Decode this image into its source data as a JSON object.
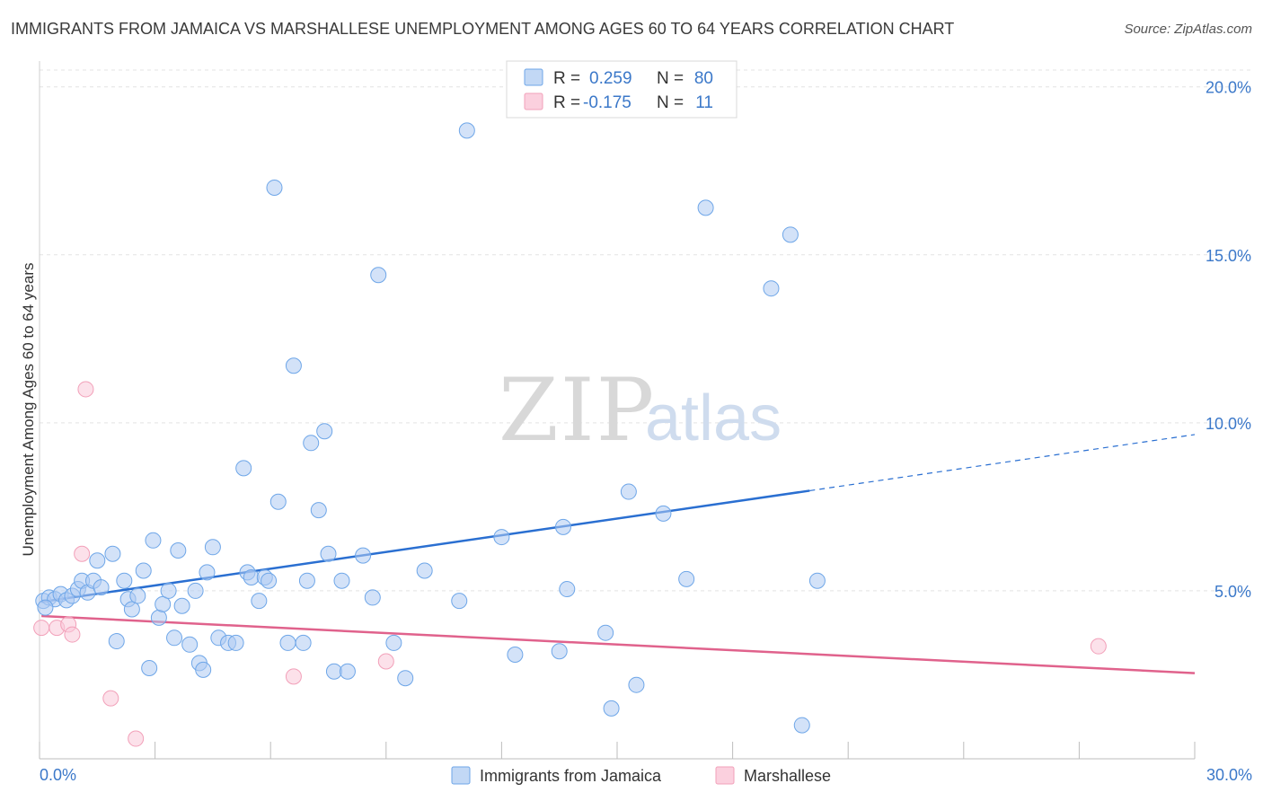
{
  "title": "IMMIGRANTS FROM JAMAICA VS MARSHALLESE UNEMPLOYMENT AMONG AGES 60 TO 64 YEARS CORRELATION CHART",
  "source": "Source: ZipAtlas.com",
  "watermark": {
    "part1": "ZIP",
    "part2": "atlas"
  },
  "colors": {
    "jamaica": "#6ea6e8",
    "jamaica_line": "#2a6fd1",
    "marshallese": "#f2a0b9",
    "marshallese_line": "#e0628c",
    "axis_label": "#3b78c9"
  },
  "legend": {
    "rows": [
      {
        "r_label": "R =",
        "r_value": "0.259",
        "n_label": "N =",
        "n_value": "80"
      },
      {
        "r_label": "R =",
        "r_value": "-0.175",
        "n_label": "N =",
        "n_value": "11"
      }
    ]
  },
  "chart_data": {
    "type": "scatter",
    "title": "IMMIGRANTS FROM JAMAICA VS MARSHALLESE UNEMPLOYMENT AMONG AGES 60 TO 64 YEARS CORRELATION CHART",
    "xlabel": "",
    "ylabel": "Unemployment Among Ages 60 to 64 years",
    "xlim": [
      0,
      30
    ],
    "ylim": [
      0,
      20.5
    ],
    "x_tick_labels": [
      "0.0%",
      "30.0%"
    ],
    "y_ticks": [
      5,
      10,
      15,
      20
    ],
    "y_tick_labels": [
      "5.0%",
      "10.0%",
      "15.0%",
      "20.0%"
    ],
    "grid": true,
    "series": [
      {
        "name": "Immigrants from Jamaica",
        "R": 0.259,
        "N": 80,
        "trend": {
          "x0": 0.05,
          "y0": 4.67,
          "x1": 20.0,
          "y1": 7.98,
          "dashed_to_x": 30.0,
          "dashed_to_y": 9.65
        },
        "points": [
          [
            0.1,
            4.7
          ],
          [
            0.25,
            4.8
          ],
          [
            0.4,
            4.75
          ],
          [
            0.55,
            4.9
          ],
          [
            0.7,
            4.72
          ],
          [
            0.85,
            4.85
          ],
          [
            1.0,
            5.05
          ],
          [
            1.1,
            5.3
          ],
          [
            1.25,
            4.95
          ],
          [
            1.4,
            5.3
          ],
          [
            1.6,
            5.1
          ],
          [
            1.5,
            5.9
          ],
          [
            1.9,
            6.1
          ],
          [
            2.0,
            3.5
          ],
          [
            2.2,
            5.3
          ],
          [
            2.3,
            4.75
          ],
          [
            2.4,
            4.45
          ],
          [
            2.55,
            4.85
          ],
          [
            2.7,
            5.6
          ],
          [
            2.85,
            2.7
          ],
          [
            2.95,
            6.5
          ],
          [
            3.1,
            4.2
          ],
          [
            3.2,
            4.6
          ],
          [
            3.35,
            5.0
          ],
          [
            3.5,
            3.6
          ],
          [
            3.6,
            6.2
          ],
          [
            3.7,
            4.55
          ],
          [
            3.9,
            3.4
          ],
          [
            4.05,
            5.0
          ],
          [
            4.15,
            2.85
          ],
          [
            4.25,
            2.65
          ],
          [
            4.35,
            5.55
          ],
          [
            4.5,
            6.3
          ],
          [
            4.65,
            3.6
          ],
          [
            4.9,
            3.45
          ],
          [
            5.1,
            3.45
          ],
          [
            5.3,
            8.65
          ],
          [
            5.4,
            5.55
          ],
          [
            5.5,
            5.4
          ],
          [
            5.7,
            4.7
          ],
          [
            5.85,
            5.4
          ],
          [
            5.95,
            5.3
          ],
          [
            6.1,
            17.0
          ],
          [
            6.2,
            7.65
          ],
          [
            6.45,
            3.45
          ],
          [
            6.6,
            11.7
          ],
          [
            6.85,
            3.45
          ],
          [
            6.95,
            5.3
          ],
          [
            7.05,
            9.4
          ],
          [
            7.25,
            7.4
          ],
          [
            7.4,
            9.75
          ],
          [
            7.5,
            6.1
          ],
          [
            7.65,
            2.6
          ],
          [
            7.85,
            5.3
          ],
          [
            8.0,
            2.6
          ],
          [
            8.4,
            6.05
          ],
          [
            8.65,
            4.8
          ],
          [
            8.8,
            14.4
          ],
          [
            9.2,
            3.45
          ],
          [
            9.5,
            2.4
          ],
          [
            10.0,
            5.6
          ],
          [
            10.9,
            4.7
          ],
          [
            11.1,
            18.7
          ],
          [
            12.0,
            6.6
          ],
          [
            12.35,
            3.1
          ],
          [
            13.5,
            3.2
          ],
          [
            13.6,
            6.9
          ],
          [
            13.7,
            5.05
          ],
          [
            14.7,
            3.75
          ],
          [
            14.85,
            1.5
          ],
          [
            15.3,
            7.95
          ],
          [
            15.5,
            2.2
          ],
          [
            16.2,
            7.3
          ],
          [
            16.8,
            5.35
          ],
          [
            17.3,
            16.4
          ],
          [
            19.0,
            14.0
          ],
          [
            19.5,
            15.6
          ],
          [
            19.8,
            1.0
          ],
          [
            20.2,
            5.3
          ],
          [
            0.15,
            4.5
          ]
        ]
      },
      {
        "name": "Marshallese",
        "R": -0.175,
        "N": 11,
        "trend": {
          "x0": 0.05,
          "y0": 4.25,
          "x1": 30.0,
          "y1": 2.55
        },
        "points": [
          [
            0.05,
            3.9
          ],
          [
            0.45,
            3.9
          ],
          [
            0.75,
            4.0
          ],
          [
            0.85,
            3.7
          ],
          [
            1.1,
            6.1
          ],
          [
            1.2,
            11.0
          ],
          [
            1.85,
            1.8
          ],
          [
            2.5,
            0.6
          ],
          [
            6.6,
            2.45
          ],
          [
            9.0,
            2.9
          ],
          [
            27.5,
            3.35
          ]
        ]
      }
    ]
  }
}
